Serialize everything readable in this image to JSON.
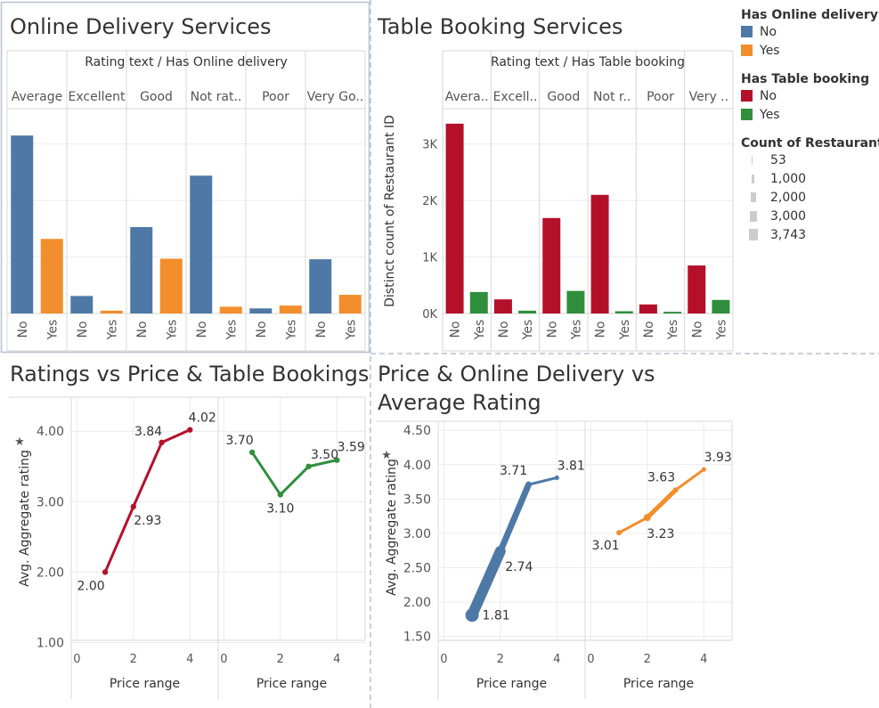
{
  "colors": {
    "blue": "#4e79a7",
    "orange": "#f28e2b",
    "red": "#b5102a",
    "green": "#2f8f3d"
  },
  "legend": {
    "online_title": "Has Online delivery",
    "online_items": [
      "No",
      "Yes"
    ],
    "table_title": "Has Table booking",
    "table_items": [
      "No",
      "Yes"
    ],
    "count_title": "Count of Restaurant..",
    "count_items": [
      "53",
      "1,000",
      "2,000",
      "3,000",
      "3,743"
    ]
  },
  "chart_data": [
    {
      "id": "online",
      "type": "bar",
      "title": "Online Delivery Services",
      "header": "Rating text  /  Has Online delivery",
      "ylabel": "",
      "ylim": [
        0,
        3500
      ],
      "yticks": [],
      "categories": [
        "Average",
        "Excellent",
        "Good",
        "Not rat..",
        "Poor",
        "Very Go.."
      ],
      "subcategories": [
        "No",
        "Yes"
      ],
      "series": [
        {
          "name": "No",
          "color": "blue",
          "values": [
            3150,
            310,
            1530,
            2440,
            90,
            960
          ]
        },
        {
          "name": "Yes",
          "color": "orange",
          "values": [
            1320,
            50,
            970,
            120,
            140,
            330
          ]
        }
      ]
    },
    {
      "id": "table",
      "type": "bar",
      "title": "Table Booking Services",
      "header": "Rating text  /  Has Table booking",
      "ylabel": "Distinct count of Restaurant ID",
      "ylim": [
        0,
        3500
      ],
      "yticks": [
        {
          "v": 0,
          "label": "0K"
        },
        {
          "v": 1000,
          "label": "1K"
        },
        {
          "v": 2000,
          "label": "2K"
        },
        {
          "v": 3000,
          "label": "3K"
        }
      ],
      "categories": [
        "Avera..",
        "Excell..",
        "Good",
        "Not r..",
        "Poor",
        "Very .."
      ],
      "subcategories": [
        "No",
        "Yes"
      ],
      "series": [
        {
          "name": "No",
          "color": "red",
          "values": [
            3360,
            250,
            1690,
            2100,
            160,
            850
          ]
        },
        {
          "name": "Yes",
          "color": "green",
          "values": [
            380,
            50,
            400,
            40,
            30,
            240
          ]
        }
      ]
    },
    {
      "id": "ratings",
      "type": "line",
      "title": "Ratings vs Price & Table Bookings",
      "ylabel": "Avg. Aggregate rating",
      "ylim": [
        0.88,
        4.42
      ],
      "yticks": [
        {
          "v": 1,
          "label": "1.00"
        },
        {
          "v": 2,
          "label": "2.00"
        },
        {
          "v": 3,
          "label": "3.00"
        },
        {
          "v": 4,
          "label": "4.00"
        }
      ],
      "xlim": [
        -0.2,
        5
      ],
      "xticks": [
        0,
        2,
        4
      ],
      "xlabel": "Price range",
      "series": [
        {
          "name": "No",
          "color": "red",
          "x": [
            1,
            2,
            3,
            4
          ],
          "y": [
            2.0,
            2.93,
            3.84,
            4.02
          ],
          "labels": [
            "2.00",
            "2.93",
            "3.84",
            "4.02"
          ]
        },
        {
          "name": "Yes",
          "color": "green",
          "x": [
            1,
            2,
            3,
            4
          ],
          "y": [
            3.7,
            3.1,
            3.5,
            3.59
          ],
          "labels": [
            "3.70",
            "3.10",
            "3.50",
            "3.59"
          ]
        }
      ]
    },
    {
      "id": "price",
      "type": "line",
      "title": "Price & Online Delivery vs Average Rating",
      "ylabel": "Avg. Aggregate rating",
      "ylim": [
        1.34,
        4.58
      ],
      "yticks": [
        {
          "v": 1.5,
          "label": "1.50"
        },
        {
          "v": 2,
          "label": "2.00"
        },
        {
          "v": 2.5,
          "label": "2.50"
        },
        {
          "v": 3,
          "label": "3.00"
        },
        {
          "v": 3.5,
          "label": "3.50"
        },
        {
          "v": 4,
          "label": "4.00"
        },
        {
          "v": 4.5,
          "label": "4.50"
        }
      ],
      "xlim": [
        -0.2,
        5
      ],
      "xticks": [
        0,
        2,
        4
      ],
      "xlabel": "Price range",
      "series": [
        {
          "name": "No",
          "color": "blue",
          "x": [
            1,
            2,
            3,
            4
          ],
          "y": [
            1.81,
            2.74,
            3.71,
            3.81
          ],
          "labels": [
            "1.81",
            "2.74",
            "3.71",
            "3.81"
          ],
          "widths": [
            12,
            7,
            3,
            2
          ]
        },
        {
          "name": "Yes",
          "color": "orange",
          "x": [
            1,
            2,
            3,
            4
          ],
          "y": [
            3.01,
            3.23,
            3.63,
            3.93
          ],
          "labels": [
            "3.01",
            "3.23",
            "3.63",
            "3.93"
          ],
          "widths": [
            3,
            5,
            3,
            2
          ]
        }
      ]
    }
  ]
}
